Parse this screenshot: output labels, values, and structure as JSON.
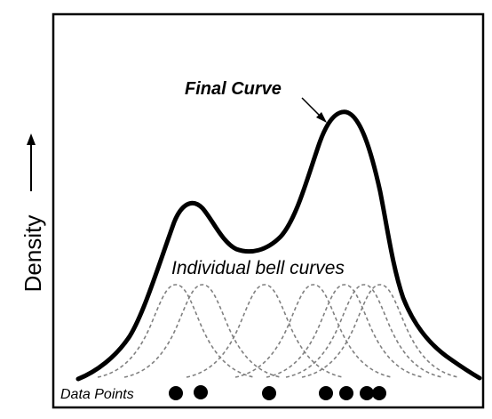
{
  "diagram": {
    "y_axis_label": "Density",
    "final_curve_label": "Final Curve",
    "bell_curves_label": "Individual bell curves",
    "data_points_label": "Data Points",
    "data_point_count": 7,
    "bell_curve_count": 7,
    "colors": {
      "final_curve": "#000000",
      "bell_curves": "#808080",
      "frame": "#000000",
      "data_points": "#000000"
    }
  }
}
